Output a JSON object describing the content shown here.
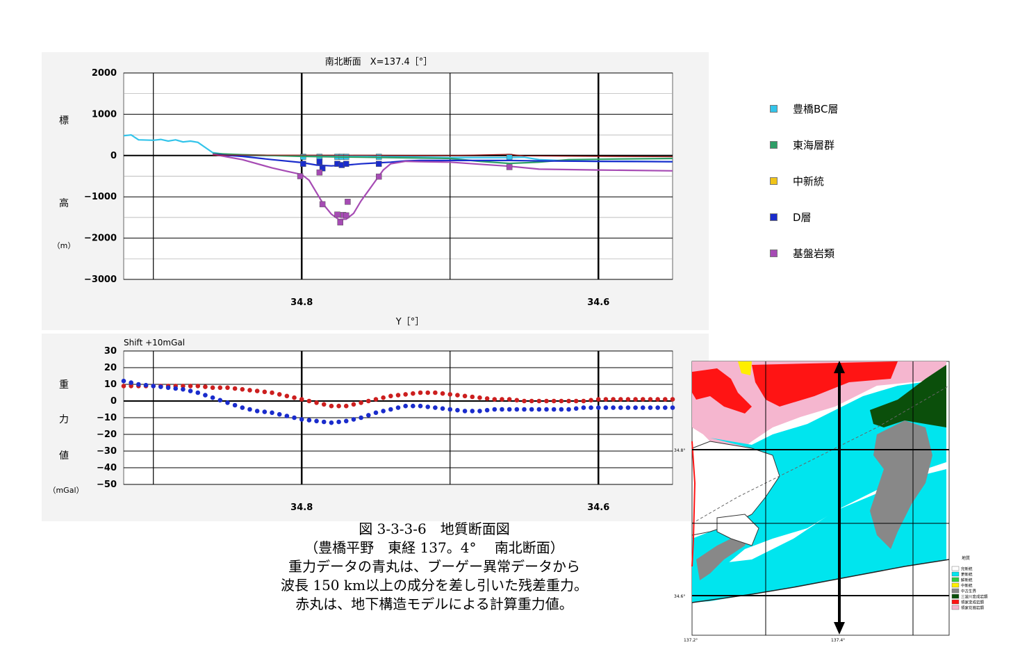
{
  "chart_data": [
    {
      "type": "line",
      "title": "南北断面　X=137.4［°］",
      "xlabel": "Y［°］",
      "ylabel_chars": [
        "標",
        "高",
        "（m）"
      ],
      "xlim": [
        34.92,
        34.55
      ],
      "ylim": [
        -3000,
        2000
      ],
      "yticks": [
        "2000",
        "1000",
        "0",
        "−1000",
        "−2000",
        "−3000"
      ],
      "xticks": [
        "34.8",
        "34.6"
      ],
      "grid": true,
      "legend_position": "right",
      "legend": [
        {
          "name": "豊橋BC層",
          "color": "#33c4ea"
        },
        {
          "name": "東海層群",
          "color": "#2e9e67"
        },
        {
          "name": "中新統",
          "color": "#f0c419"
        },
        {
          "name": "D層",
          "color": "#1a2ccc"
        },
        {
          "name": "基盤岩類",
          "color": "#a64bb4"
        }
      ],
      "series": [
        {
          "name": "豊橋BC層",
          "color": "#33c4ea",
          "x": [
            34.92,
            34.915,
            34.91,
            34.9,
            34.895,
            34.89,
            34.885,
            34.88,
            34.875,
            34.87,
            34.86,
            34.85,
            34.84,
            34.82,
            34.8,
            34.78,
            34.76,
            34.74,
            34.72,
            34.7,
            34.68,
            34.66,
            34.65,
            34.64,
            34.62,
            34.6,
            34.58,
            34.55
          ],
          "values": [
            480,
            500,
            380,
            370,
            390,
            350,
            380,
            330,
            350,
            320,
            70,
            20,
            10,
            0,
            -10,
            -20,
            -20,
            -30,
            -40,
            -50,
            -50,
            -50,
            -40,
            -100,
            -130,
            -140,
            -140,
            -150
          ],
          "points_x": [
            34.799,
            34.788,
            34.776,
            34.773,
            34.77,
            34.748,
            34.66
          ],
          "points_y": [
            -30,
            -30,
            -30,
            -30,
            -30,
            -30,
            -30
          ]
        },
        {
          "name": "東海層群",
          "color": "#2e9e67",
          "x": [
            34.86,
            34.84,
            34.82,
            34.8,
            34.78,
            34.76,
            34.74,
            34.72,
            34.7,
            34.68,
            34.66,
            34.64,
            34.62,
            34.6,
            34.58,
            34.55
          ],
          "values": [
            50,
            20,
            0,
            -20,
            -30,
            -40,
            -50,
            -60,
            -70,
            -140,
            -190,
            -160,
            -100,
            -90,
            -80,
            -70
          ],
          "points_x": [],
          "points_y": []
        },
        {
          "name": "中新統",
          "color": "#f0c419",
          "x": [],
          "values": [],
          "points_x": [],
          "points_y": []
        },
        {
          "name": "D層",
          "color": "#1a2ccc",
          "x": [
            34.86,
            34.84,
            34.82,
            34.8,
            34.79,
            34.78,
            34.77,
            34.76,
            34.75,
            34.74,
            34.73,
            34.72,
            34.7,
            34.68,
            34.66,
            34.64,
            34.6,
            34.55
          ],
          "values": [
            30,
            -20,
            -100,
            -170,
            -230,
            -250,
            -230,
            -200,
            -180,
            -160,
            -130,
            -120,
            -120,
            -120,
            -120,
            -130,
            -140,
            -150
          ],
          "points_x": [
            34.799,
            34.788,
            34.786,
            34.776,
            34.773,
            34.77,
            34.748
          ],
          "points_y": [
            -200,
            -150,
            -310,
            -200,
            -230,
            -200,
            -200
          ]
        },
        {
          "name": "基盤岩類",
          "color": "#a64bb4",
          "x": [
            34.86,
            34.84,
            34.82,
            34.81,
            34.8,
            34.795,
            34.79,
            34.785,
            34.78,
            34.775,
            34.77,
            34.765,
            34.76,
            34.755,
            34.75,
            34.745,
            34.74,
            34.73,
            34.72,
            34.7,
            34.68,
            34.66,
            34.64,
            34.6,
            34.55
          ],
          "values": [
            30,
            -100,
            -300,
            -380,
            -460,
            -600,
            -900,
            -1200,
            -1420,
            -1550,
            -1540,
            -1400,
            -1100,
            -850,
            -600,
            -350,
            -200,
            -140,
            -150,
            -160,
            -210,
            -260,
            -330,
            -350,
            -370
          ],
          "points_x": [
            34.801,
            34.788,
            34.786,
            34.776,
            34.774,
            34.772,
            34.77,
            34.769,
            34.748,
            34.66
          ],
          "points_y": [
            -500,
            -410,
            -1180,
            -1430,
            -1620,
            -1440,
            -1450,
            -1120,
            -510,
            -280
          ]
        }
      ]
    },
    {
      "type": "scatter",
      "title": "Shift +10mGal",
      "ylabel_chars": [
        "重",
        "力",
        "値",
        "（mGal）"
      ],
      "xlim": [
        34.92,
        34.55
      ],
      "ylim": [
        -50,
        30
      ],
      "yticks": [
        "30",
        "20",
        "10",
        "0",
        "−10",
        "−20",
        "−30",
        "−40",
        "−50"
      ],
      "xticks": [
        "34.8",
        "34.6"
      ],
      "grid": true,
      "series": [
        {
          "name": "残差重力",
          "color": "#1a2ccc",
          "x": [
            34.92,
            34.91,
            34.9,
            34.89,
            34.88,
            34.87,
            34.86,
            34.85,
            34.84,
            34.83,
            34.82,
            34.81,
            34.8,
            34.79,
            34.78,
            34.77,
            34.76,
            34.75,
            34.74,
            34.73,
            34.72,
            34.71,
            34.7,
            34.69,
            34.68,
            34.67,
            34.66,
            34.65,
            34.64,
            34.63,
            34.62,
            34.61,
            34.6,
            34.59,
            34.58,
            34.57,
            34.56,
            34.55
          ],
          "values": [
            12,
            10,
            9,
            8,
            7,
            5,
            2,
            -1,
            -4,
            -6,
            -7,
            -9,
            -11,
            -12,
            -13,
            -12,
            -10,
            -7,
            -5,
            -3,
            -3,
            -4,
            -5,
            -6,
            -6,
            -5,
            -5,
            -5,
            -5,
            -5,
            -5,
            -4,
            -4,
            -4,
            -4,
            -4,
            -4,
            -4
          ]
        },
        {
          "name": "計算重力値",
          "color": "#cc1f1f",
          "x": [
            34.92,
            34.91,
            34.9,
            34.89,
            34.88,
            34.87,
            34.86,
            34.85,
            34.84,
            34.83,
            34.82,
            34.81,
            34.8,
            34.79,
            34.78,
            34.77,
            34.76,
            34.75,
            34.74,
            34.73,
            34.72,
            34.71,
            34.7,
            34.69,
            34.68,
            34.67,
            34.66,
            34.65,
            34.64,
            34.63,
            34.62,
            34.61,
            34.6,
            34.59,
            34.58,
            34.57,
            34.56,
            34.55
          ],
          "values": [
            9,
            9,
            9,
            9,
            9,
            9,
            8,
            8,
            7,
            6,
            5,
            3,
            1,
            -1,
            -3,
            -3,
            -1,
            1,
            3,
            4,
            5,
            5,
            4,
            3,
            2,
            1,
            1,
            0,
            0,
            0,
            0,
            0,
            1,
            1,
            1,
            1,
            1,
            1
          ]
        }
      ]
    }
  ],
  "caption": {
    "line1": "図 3-3-3-6　地質断面図",
    "line2": "（豊橋平野　東経 137。4°　 南北断面）",
    "line3": "重力データの青丸は、ブーゲー異常データから",
    "line4": "波長 150 km以上の成分を差し引いた残差重力。",
    "line5": "赤丸は、地下構造モデルによる計算重力値。"
  },
  "map": {
    "lat_labels": [
      "34.8°",
      "34.6°"
    ],
    "lon_labels": [
      "137.2°",
      "137.4°"
    ],
    "legend_title": "地質",
    "legend_items": [
      {
        "label": "完新統",
        "color": "#ffffff"
      },
      {
        "label": "更新統",
        "color": "#00e5ee"
      },
      {
        "label": "鮮新統",
        "color": "#2ecc40"
      },
      {
        "label": "中新統",
        "color": "#ffee00"
      },
      {
        "label": "中古生界",
        "color": "#888888"
      },
      {
        "label": "三波川変成岩類",
        "color": "#0b4f0b"
      },
      {
        "label": "領家変成岩類",
        "color": "#ff1414"
      },
      {
        "label": "領家花崗岩類",
        "color": "#f5b6cf"
      }
    ]
  }
}
